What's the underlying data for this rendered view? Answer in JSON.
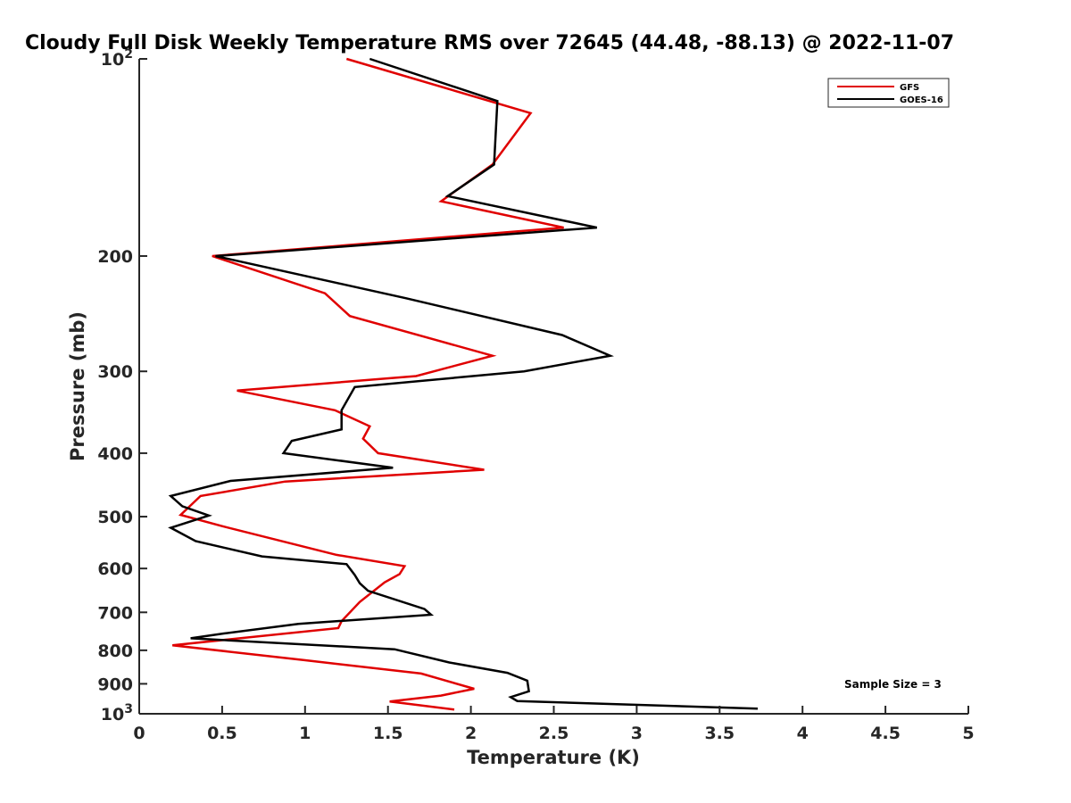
{
  "chart_data": {
    "type": "line",
    "title": "Cloudy Full Disk Weekly Temperature RMS over 72645 (44.48, -88.13) @ 2022-11-07",
    "xlabel": "Temperature (K)",
    "ylabel": "Pressure (mb)",
    "xlim": [
      0,
      5
    ],
    "ylim": [
      100,
      1000
    ],
    "y_scale": "log",
    "y_reversed": true,
    "x_ticks": [
      0,
      0.5,
      1,
      1.5,
      2,
      2.5,
      3,
      3.5,
      4,
      4.5,
      5
    ],
    "x_tick_labels": [
      "0",
      "0.5",
      "1",
      "1.5",
      "2",
      "2.5",
      "3",
      "3.5",
      "4",
      "4.5",
      "5"
    ],
    "y_ticks": [
      {
        "value": 100,
        "base": "10",
        "exp": "2"
      },
      {
        "value": 200,
        "label": "200"
      },
      {
        "value": 300,
        "label": "300"
      },
      {
        "value": 400,
        "label": "400"
      },
      {
        "value": 500,
        "label": "500"
      },
      {
        "value": 600,
        "label": "600"
      },
      {
        "value": 700,
        "label": "700"
      },
      {
        "value": 800,
        "label": "800"
      },
      {
        "value": 900,
        "label": "900"
      },
      {
        "value": 1000,
        "base": "10",
        "exp": "3"
      }
    ],
    "grid": false,
    "legend_position": "top-right",
    "annotation": "Sample Size = 3",
    "series": [
      {
        "name": "GFS",
        "color": "#e00000",
        "points": [
          [
            1.25,
            100
          ],
          [
            2.36,
            121
          ],
          [
            2.13,
            145
          ],
          [
            1.82,
            165
          ],
          [
            2.56,
            181
          ],
          [
            0.44,
            200
          ],
          [
            1.12,
            228
          ],
          [
            1.27,
            247
          ],
          [
            2.13,
            284
          ],
          [
            1.67,
            305
          ],
          [
            0.59,
            321
          ],
          [
            1.18,
            344
          ],
          [
            1.39,
            364
          ],
          [
            1.35,
            380
          ],
          [
            1.44,
            400
          ],
          [
            2.08,
            424
          ],
          [
            0.88,
            442
          ],
          [
            0.37,
            465
          ],
          [
            0.25,
            497
          ],
          [
            0.5,
            517
          ],
          [
            1.19,
            572
          ],
          [
            1.6,
            595
          ],
          [
            1.57,
            612
          ],
          [
            1.48,
            630
          ],
          [
            1.33,
            675
          ],
          [
            1.22,
            722
          ],
          [
            1.2,
            740
          ],
          [
            0.2,
            786
          ],
          [
            0.99,
            828
          ],
          [
            1.7,
            868
          ],
          [
            2.02,
            916
          ],
          [
            1.82,
            938
          ],
          [
            1.51,
            958
          ],
          [
            1.9,
            985
          ]
        ]
      },
      {
        "name": "GOES-16",
        "color": "#000000",
        "points": [
          [
            1.39,
            100
          ],
          [
            2.16,
            116
          ],
          [
            2.14,
            145
          ],
          [
            1.86,
            162
          ],
          [
            2.76,
            181
          ],
          [
            0.46,
            200
          ],
          [
            1.61,
            232
          ],
          [
            2.55,
            264
          ],
          [
            2.84,
            284
          ],
          [
            2.32,
            300
          ],
          [
            1.3,
            317
          ],
          [
            1.22,
            344
          ],
          [
            1.22,
            368
          ],
          [
            0.92,
            383
          ],
          [
            0.87,
            400
          ],
          [
            1.53,
            421
          ],
          [
            0.55,
            441
          ],
          [
            0.19,
            465
          ],
          [
            0.26,
            482
          ],
          [
            0.42,
            498
          ],
          [
            0.19,
            520
          ],
          [
            0.34,
            545
          ],
          [
            0.74,
            575
          ],
          [
            1.25,
            591
          ],
          [
            1.3,
            614
          ],
          [
            1.33,
            632
          ],
          [
            1.38,
            649
          ],
          [
            1.72,
            692
          ],
          [
            1.76,
            706
          ],
          [
            0.96,
            729
          ],
          [
            0.51,
            754
          ],
          [
            0.31,
            767
          ],
          [
            1.54,
            797
          ],
          [
            1.87,
            835
          ],
          [
            2.22,
            866
          ],
          [
            2.34,
            890
          ],
          [
            2.35,
            924
          ],
          [
            2.24,
            943
          ],
          [
            2.28,
            956
          ],
          [
            3.73,
            982
          ]
        ]
      }
    ]
  }
}
